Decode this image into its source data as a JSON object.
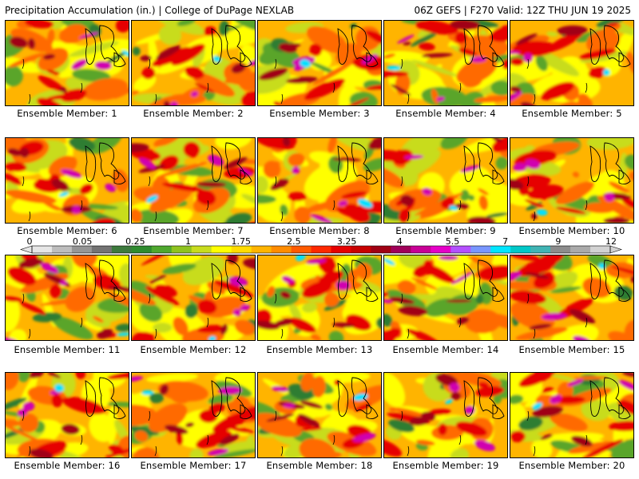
{
  "header": {
    "left": "Precipitation Accumulation (in.) | College of DuPage NEXLAB",
    "right": "06Z GEFS | F270 Valid: 12Z THU JUN 19 2025"
  },
  "panel_caption_prefix": "Ensemble Member:",
  "members": [
    {
      "n": 1,
      "label": "Ensemble Member: 1"
    },
    {
      "n": 2,
      "label": "Ensemble Member: 2"
    },
    {
      "n": 3,
      "label": "Ensemble Member: 3"
    },
    {
      "n": 4,
      "label": "Ensemble Member: 4"
    },
    {
      "n": 5,
      "label": "Ensemble Member: 5"
    },
    {
      "n": 6,
      "label": "Ensemble Member: 6"
    },
    {
      "n": 7,
      "label": "Ensemble Member: 7"
    },
    {
      "n": 8,
      "label": "Ensemble Member: 8"
    },
    {
      "n": 9,
      "label": "Ensemble Member: 9"
    },
    {
      "n": 10,
      "label": "Ensemble Member: 10"
    },
    {
      "n": 11,
      "label": "Ensemble Member: 11"
    },
    {
      "n": 12,
      "label": "Ensemble Member: 12"
    },
    {
      "n": 13,
      "label": "Ensemble Member: 13"
    },
    {
      "n": 14,
      "label": "Ensemble Member: 14"
    },
    {
      "n": 15,
      "label": "Ensemble Member: 15"
    },
    {
      "n": 16,
      "label": "Ensemble Member: 16"
    },
    {
      "n": 17,
      "label": "Ensemble Member: 17"
    },
    {
      "n": 18,
      "label": "Ensemble Member: 18"
    },
    {
      "n": 19,
      "label": "Ensemble Member: 19"
    },
    {
      "n": 20,
      "label": "Ensemble Member: 20"
    }
  ],
  "colorbar": {
    "labels": [
      "0",
      "0.05",
      "0.25",
      "1",
      "1.75",
      "2.5",
      "3.25",
      "4",
      "5.5",
      "7",
      "9",
      "12"
    ],
    "colors": [
      "#e6e6e6",
      "#bdbdbd",
      "#969696",
      "#737373",
      "#3d7a3d",
      "#2e8b2e",
      "#4fa82e",
      "#8fc31f",
      "#c8dc1e",
      "#ffff00",
      "#ffdc00",
      "#ffb400",
      "#ff8c00",
      "#ff5a00",
      "#ff2800",
      "#e60000",
      "#c80000",
      "#a00014",
      "#a0005a",
      "#c80096",
      "#e600c8",
      "#b450ff",
      "#7896ff",
      "#00e6ff",
      "#00c8c8",
      "#40b4b4",
      "#8c8c8c",
      "#aaaaaa",
      "#d2d2d2"
    ]
  },
  "palette": {
    "green_dark": "#2f7d32",
    "green": "#5aa52a",
    "yellow_green": "#c8dc1e",
    "yellow": "#ffff00",
    "orange": "#ffb400",
    "dark_orange": "#ff6a00",
    "red": "#e60000",
    "dark_red": "#a00014",
    "magenta": "#d000b0",
    "cyan": "#00e0ff",
    "gray": "#9a9a9a"
  }
}
